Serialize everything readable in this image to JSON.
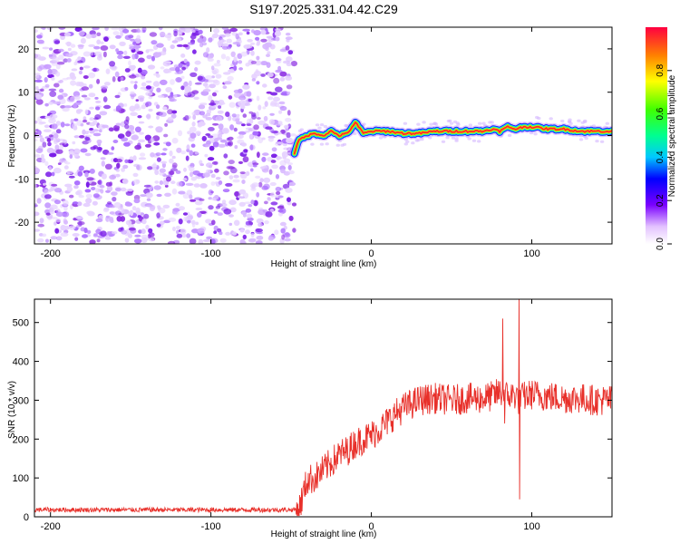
{
  "title": "S197.2025.331.04.42.C29",
  "chart_data": [
    {
      "type": "heatmap",
      "xlabel": "Height of straight line (km)",
      "ylabel": "Frequency (Hz)",
      "xlim": [
        -210,
        150
      ],
      "ylim": [
        -25,
        25
      ],
      "xticks": [
        -200,
        -100,
        0,
        100
      ],
      "yticks": [
        -20,
        -10,
        0,
        10,
        20
      ],
      "noise_region": {
        "x_start": -210,
        "x_end": -48,
        "y_range": [
          -25,
          25
        ]
      },
      "signal_track": {
        "x": [
          -48,
          -45,
          -40,
          -35,
          -30,
          -25,
          -20,
          -15,
          -10,
          -5,
          0,
          10,
          20,
          30,
          40,
          50,
          60,
          70,
          75,
          80,
          85,
          90,
          95,
          100,
          110,
          120,
          130,
          140,
          150
        ],
        "frequency": [
          -4,
          -1,
          0,
          0.5,
          0,
          1,
          0,
          0.5,
          3,
          0.5,
          1,
          1,
          0.5,
          0.5,
          1,
          1,
          1,
          1,
          1.5,
          1,
          2,
          1.5,
          2,
          2,
          1.5,
          1.5,
          1,
          1,
          1
        ]
      },
      "colorbar": {
        "label": "Normalized spectral amplitude",
        "range": [
          0.0,
          1.0
        ],
        "ticks": [
          "0.0",
          "0.2",
          "0.4",
          "0.6",
          "0.8"
        ],
        "colormap": "rainbow"
      }
    },
    {
      "type": "line",
      "xlabel": "Height of straight line (km)",
      "ylabel": "SNR (10 * v/v)",
      "xlim": [
        -210,
        150
      ],
      "ylim": [
        0,
        560
      ],
      "xticks": [
        -200,
        -100,
        0,
        100
      ],
      "yticks": [
        0,
        100,
        200,
        300,
        400,
        500
      ],
      "color": "#e8302a",
      "x": [
        -210,
        -200,
        -180,
        -160,
        -140,
        -120,
        -100,
        -80,
        -60,
        -50,
        -45,
        -40,
        -35,
        -30,
        -25,
        -20,
        -15,
        -10,
        -5,
        0,
        5,
        10,
        15,
        20,
        25,
        30,
        40,
        50,
        60,
        70,
        75,
        80,
        85,
        90,
        92,
        95,
        100,
        110,
        120,
        130,
        140,
        150
      ],
      "y": [
        18,
        18,
        18,
        18,
        18,
        18,
        18,
        18,
        18,
        18,
        20,
        95,
        100,
        120,
        140,
        160,
        170,
        190,
        200,
        210,
        225,
        245,
        265,
        280,
        290,
        300,
        305,
        300,
        305,
        305,
        310,
        320,
        310,
        315,
        300,
        310,
        315,
        310,
        305,
        305,
        300,
        300
      ],
      "noise_amplitude": {
        "baseline": 10,
        "signal": 50
      },
      "spikes": [
        {
          "x": 82,
          "y": 510
        },
        {
          "x": 83,
          "y": 240
        },
        {
          "x": 92,
          "y": 560
        },
        {
          "x": 92.5,
          "y": 45
        }
      ]
    }
  ]
}
